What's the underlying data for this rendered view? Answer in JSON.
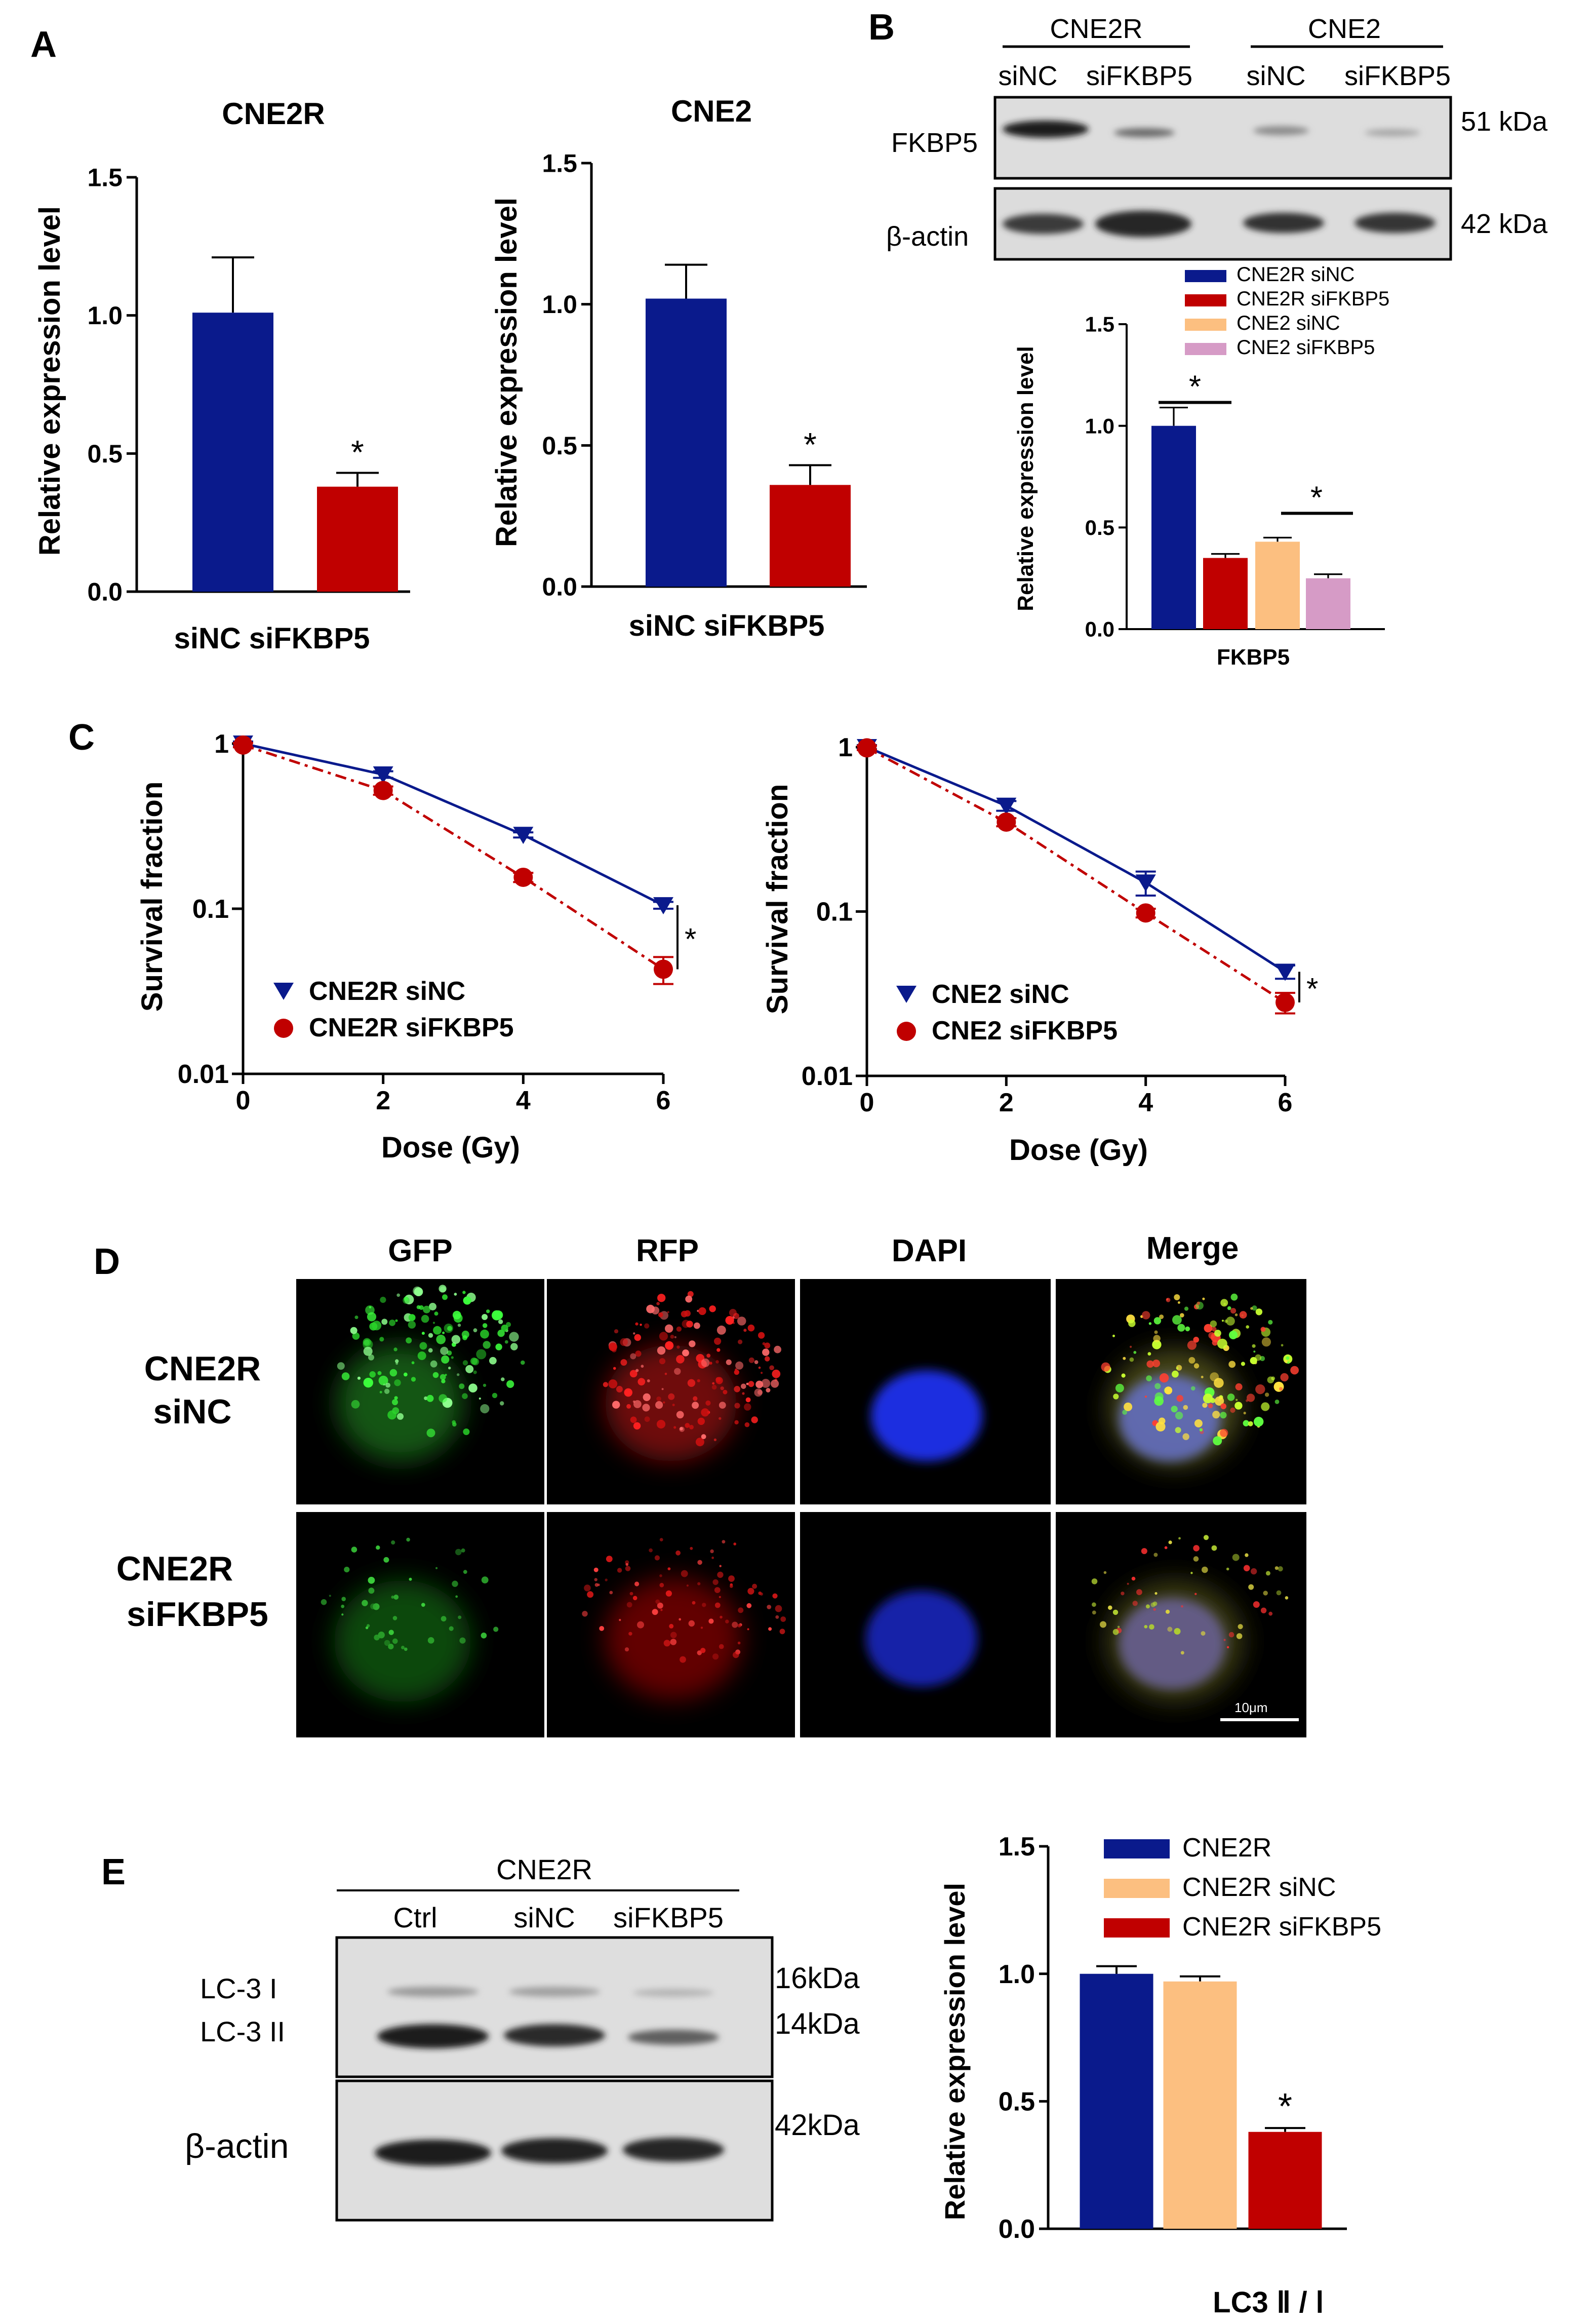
{
  "panel_labels": [
    "A",
    "B",
    "C",
    "D",
    "E"
  ],
  "colors": {
    "navy": "#0a1a8c",
    "red": "#c00000",
    "orange": "#fcbf80",
    "pink": "#d69bc6",
    "black": "#111111",
    "blot_bg": "#dedede"
  },
  "chart_data": [
    {
      "id": "A1",
      "type": "bar",
      "title": "CNE2R",
      "categories": [
        "siNC",
        "siFKBP5"
      ],
      "values": [
        1.01,
        0.38
      ],
      "errors": [
        0.2,
        0.05
      ],
      "ylabel": "Relative expression level",
      "ylim": [
        0,
        1.5
      ],
      "yticks": [
        "0.0",
        "0.5",
        "1.0",
        "1.5"
      ],
      "xlabel_text": "siNC siFKBP5",
      "significance": "*"
    },
    {
      "id": "A2",
      "type": "bar",
      "title": "CNE2",
      "categories": [
        "siNC",
        "siFKBP5"
      ],
      "values": [
        1.02,
        0.36
      ],
      "errors": [
        0.12,
        0.07
      ],
      "ylabel": "Relative expression level",
      "ylim": [
        0,
        1.5
      ],
      "yticks": [
        "0.0",
        "0.5",
        "1.0",
        "1.5"
      ],
      "xlabel_text": "siNC siFKBP5",
      "significance": "*"
    },
    {
      "id": "B",
      "type": "bar",
      "categories": [
        "FKBP5"
      ],
      "series": [
        {
          "name": "CNE2R siNC",
          "values": [
            1.0
          ],
          "errors": [
            0.09
          ]
        },
        {
          "name": "CNE2R siFKBP5",
          "values": [
            0.35
          ],
          "errors": [
            0.02
          ]
        },
        {
          "name": "CNE2 siNC",
          "values": [
            0.43
          ],
          "errors": [
            0.02
          ]
        },
        {
          "name": "CNE2 siFKBP5",
          "values": [
            0.25
          ],
          "errors": [
            0.02
          ]
        }
      ],
      "ylabel": "Relative expression level",
      "ylim": [
        0,
        1.5
      ],
      "yticks": [
        "0.0",
        "0.5",
        "1.0",
        "1.5"
      ],
      "xlabel": "FKBP5",
      "legend": "top",
      "significance": "*"
    },
    {
      "id": "C1",
      "type": "line",
      "scale_y": "log",
      "x": [
        0,
        2,
        4,
        6
      ],
      "series": [
        {
          "name": "CNE2R siNC",
          "values": [
            1.0,
            0.65,
            0.28,
            0.105
          ],
          "errors": [
            0.03,
            0.03,
            0.01,
            0.005
          ]
        },
        {
          "name": "CNE2R siFKBP5",
          "values": [
            0.98,
            0.52,
            0.155,
            0.043
          ],
          "errors": [
            0.03,
            0.03,
            0.01,
            0.008
          ]
        }
      ],
      "xlabel": "Dose (Gy)",
      "ylabel": "Survival fraction",
      "xticks": [
        "0",
        "2",
        "4",
        "6"
      ],
      "yticks": [
        "0.01",
        "0.1",
        "1"
      ],
      "ylim": [
        0.01,
        1
      ],
      "xlim": [
        0,
        6
      ],
      "significance": "*"
    },
    {
      "id": "C2",
      "type": "line",
      "scale_y": "log",
      "x": [
        0,
        2,
        4,
        6
      ],
      "series": [
        {
          "name": "CNE2 siNC",
          "values": [
            1.0,
            0.44,
            0.15,
            0.043
          ],
          "errors": [
            0.03,
            0.03,
            0.025,
            0.004
          ]
        },
        {
          "name": "CNE2 siFKBP5",
          "values": [
            0.99,
            0.35,
            0.098,
            0.028
          ],
          "errors": [
            0.03,
            0.02,
            0.006,
            0.004
          ]
        }
      ],
      "xlabel": "Dose (Gy)",
      "ylabel": "Survival fraction",
      "xticks": [
        "0",
        "2",
        "4",
        "6"
      ],
      "yticks": [
        "0.01",
        "0.1",
        "1"
      ],
      "ylim": [
        0.01,
        1
      ],
      "xlim": [
        0,
        6
      ],
      "significance": "*"
    },
    {
      "id": "E",
      "type": "bar",
      "categories": [
        "LC3 II/I"
      ],
      "series": [
        {
          "name": "CNE2R",
          "values": [
            1.0
          ],
          "errors": [
            0.03
          ]
        },
        {
          "name": "CNE2R siNC",
          "values": [
            0.97
          ],
          "errors": [
            0.02
          ]
        },
        {
          "name": "CNE2R siFKBP5",
          "values": [
            0.38
          ],
          "errors": [
            0.015
          ]
        }
      ],
      "ylabel": "Relative expression level",
      "ylim": [
        0,
        1.5
      ],
      "yticks": [
        "0.0",
        "0.5",
        "1.0",
        "1.5"
      ],
      "xlabel": "LC3 Ⅱ / Ⅰ",
      "legend": "top-right",
      "significance": "*"
    }
  ],
  "blot_b": {
    "groups": [
      "CNE2R",
      "CNE2"
    ],
    "lanes": [
      "siNC",
      "siFKBP5",
      "siNC",
      "siFKBP5"
    ],
    "rows": [
      "FKBP5",
      "β-actin"
    ],
    "sizes": [
      "51 kDa",
      "42 kDa"
    ]
  },
  "microscopy_d": {
    "channels": [
      "GFP",
      "RFP",
      "DAPI",
      "Merge"
    ],
    "rows": [
      [
        "CNE2R",
        "siNC"
      ],
      [
        "CNE2R",
        "siFKBP5"
      ]
    ],
    "scale_bar": "10μm"
  },
  "blot_e": {
    "group": "CNE2R",
    "lanes": [
      "Ctrl",
      "siNC",
      "siFKBP5"
    ],
    "rows": [
      "LC-3 I",
      "LC-3 II",
      "β-actin"
    ],
    "sizes": [
      "16kDa",
      "14kDa",
      "42kDa"
    ]
  }
}
